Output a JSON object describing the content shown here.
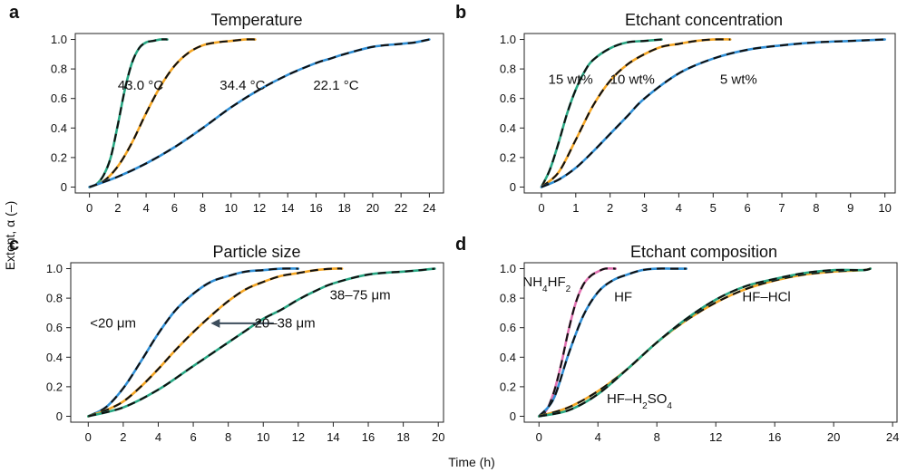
{
  "figure": {
    "ylabel": "Extent, α (–)",
    "xlabel": "Time (h)",
    "colors": {
      "green": "#27a884",
      "orange": "#f5a623",
      "blue": "#2f8fd6",
      "pink": "#e06fb0",
      "fit": "#111111",
      "arrow": "#3d4d5c"
    }
  },
  "chart_data": [
    {
      "id": "a",
      "type": "line",
      "panel_letter": "a",
      "title": "Temperature",
      "xlim": [
        -1,
        25
      ],
      "ylim": [
        0,
        1.0
      ],
      "xticks": [
        0,
        2,
        4,
        6,
        8,
        10,
        12,
        14,
        16,
        18,
        20,
        22,
        24
      ],
      "yticks": [
        0,
        0.2,
        0.4,
        0.6,
        0.8,
        1.0
      ],
      "ytick_labels": [
        "0",
        "0.2",
        "0.4",
        "0.6",
        "0.8",
        "1.0"
      ],
      "series": [
        {
          "label": "43.0 °C",
          "color": "green",
          "x": [
            0,
            0.5,
            1,
            1.5,
            2,
            2.5,
            3,
            3.5,
            4,
            4.5,
            5,
            5.5
          ],
          "y": [
            0,
            0.02,
            0.08,
            0.2,
            0.42,
            0.66,
            0.84,
            0.94,
            0.98,
            0.99,
            1.0,
            1.0
          ]
        },
        {
          "label": "34.4 °C",
          "color": "orange",
          "x": [
            0,
            1,
            2,
            3,
            4,
            5,
            6,
            7,
            8,
            9,
            10,
            11,
            11.7
          ],
          "y": [
            0,
            0.04,
            0.14,
            0.3,
            0.5,
            0.68,
            0.82,
            0.91,
            0.96,
            0.98,
            0.99,
            1.0,
            1.0
          ]
        },
        {
          "label": "22.1 °C",
          "color": "blue",
          "x": [
            0,
            2,
            4,
            6,
            8,
            10,
            12,
            14,
            16,
            17,
            18,
            20,
            22,
            23,
            24
          ],
          "y": [
            0,
            0.07,
            0.16,
            0.27,
            0.4,
            0.54,
            0.66,
            0.76,
            0.84,
            0.87,
            0.9,
            0.95,
            0.97,
            0.98,
            1.0
          ]
        }
      ],
      "labels": [
        {
          "text": "43.0 °C",
          "x": 2.0,
          "y": 0.66
        },
        {
          "text": "34.4 °C",
          "x": 9.2,
          "y": 0.66
        },
        {
          "text": "22.1 °C",
          "x": 15.8,
          "y": 0.66
        }
      ]
    },
    {
      "id": "b",
      "type": "line",
      "panel_letter": "b",
      "title": "Etchant concentration",
      "xlim": [
        -0.5,
        10.3
      ],
      "ylim": [
        0,
        1.0
      ],
      "xticks": [
        0,
        1,
        2,
        3,
        4,
        5,
        6,
        7,
        8,
        9,
        10
      ],
      "yticks": [
        0,
        0.2,
        0.4,
        0.6,
        0.8,
        1.0
      ],
      "ytick_labels": [
        "0",
        "0.2",
        "0.4",
        "0.6",
        "0.8",
        "1.0"
      ],
      "series": [
        {
          "label": "15 wt%",
          "color": "green",
          "x": [
            0,
            0.25,
            0.5,
            0.75,
            1,
            1.25,
            1.5,
            2,
            2.5,
            3,
            3.5
          ],
          "y": [
            0,
            0.12,
            0.3,
            0.5,
            0.66,
            0.78,
            0.86,
            0.94,
            0.98,
            0.99,
            1.0
          ]
        },
        {
          "label": "10 wt%",
          "color": "orange",
          "x": [
            0,
            0.5,
            1,
            1.5,
            2,
            2.5,
            3,
            3.5,
            4,
            4.5,
            5,
            5.5
          ],
          "y": [
            0,
            0.1,
            0.32,
            0.55,
            0.72,
            0.83,
            0.9,
            0.95,
            0.97,
            0.99,
            1.0,
            1.0
          ]
        },
        {
          "label": "5 wt%",
          "color": "blue",
          "x": [
            0,
            0.5,
            1,
            1.5,
            2,
            2.5,
            3,
            4,
            5,
            6,
            7,
            8,
            9,
            10
          ],
          "y": [
            0,
            0.05,
            0.13,
            0.24,
            0.36,
            0.48,
            0.6,
            0.77,
            0.87,
            0.93,
            0.96,
            0.98,
            0.99,
            1.0
          ]
        }
      ],
      "labels": [
        {
          "text": "15 wt%",
          "x": 0.2,
          "y": 0.7
        },
        {
          "text": "10 wt%",
          "x": 2.0,
          "y": 0.7
        },
        {
          "text": "5 wt%",
          "x": 5.2,
          "y": 0.7
        }
      ]
    },
    {
      "id": "c",
      "type": "line",
      "panel_letter": "c",
      "title": "Particle size",
      "xlim": [
        -1,
        20.3
      ],
      "ylim": [
        0,
        1.0
      ],
      "xticks": [
        0,
        2,
        4,
        6,
        8,
        10,
        12,
        14,
        16,
        18,
        20
      ],
      "yticks": [
        0,
        0.2,
        0.4,
        0.6,
        0.8,
        1.0
      ],
      "ytick_labels": [
        "0",
        "0.2",
        "0.4",
        "0.6",
        "0.8",
        "1.0"
      ],
      "series": [
        {
          "label": "<20 μm",
          "color": "blue",
          "x": [
            0,
            1,
            2,
            3,
            4,
            5,
            6,
            7,
            8,
            9,
            10,
            11,
            12
          ],
          "y": [
            0,
            0.06,
            0.19,
            0.37,
            0.56,
            0.72,
            0.83,
            0.91,
            0.95,
            0.98,
            0.99,
            1.0,
            1.0
          ]
        },
        {
          "label": "20–38 μm",
          "color": "orange",
          "x": [
            0,
            1,
            2,
            3,
            4,
            5,
            6,
            7,
            8,
            9,
            10,
            11,
            12,
            13,
            14,
            14.5
          ],
          "y": [
            0,
            0.04,
            0.1,
            0.2,
            0.32,
            0.45,
            0.57,
            0.68,
            0.78,
            0.86,
            0.91,
            0.95,
            0.97,
            0.99,
            1.0,
            1.0
          ]
        },
        {
          "label": "38–75 μm",
          "color": "green",
          "x": [
            0,
            2,
            4,
            6,
            8,
            9,
            10,
            11,
            12,
            13,
            14,
            16,
            18,
            19,
            19.8
          ],
          "y": [
            0,
            0.06,
            0.18,
            0.34,
            0.5,
            0.58,
            0.66,
            0.72,
            0.79,
            0.85,
            0.9,
            0.96,
            0.98,
            0.99,
            1.0
          ]
        }
      ],
      "labels": [
        {
          "text": "<20 μm",
          "x": 0.1,
          "y": 0.6
        },
        {
          "text": "20–38 μm",
          "x": 9.5,
          "y": 0.6
        },
        {
          "text": "38–75 μm",
          "x": 13.8,
          "y": 0.79
        }
      ],
      "arrow": {
        "x_from": 10.6,
        "x_to": 7.0,
        "y": 0.63
      }
    },
    {
      "id": "d",
      "type": "line",
      "panel_letter": "d",
      "title": "Etchant composition",
      "xlim": [
        -1,
        24.3
      ],
      "ylim": [
        0,
        1.0
      ],
      "xticks": [
        0,
        4,
        8,
        12,
        16,
        20,
        24
      ],
      "yticks": [
        0,
        0.2,
        0.4,
        0.6,
        0.8,
        1.0
      ],
      "ytick_labels": [
        "0",
        "0.2",
        "0.4",
        "0.6",
        "0.8",
        "1.0"
      ],
      "series": [
        {
          "label": "NH4HF2",
          "color": "pink",
          "x": [
            0,
            0.5,
            1,
            1.5,
            2,
            2.5,
            3,
            3.5,
            4,
            4.5,
            5.2
          ],
          "y": [
            0,
            0.04,
            0.16,
            0.35,
            0.58,
            0.77,
            0.89,
            0.95,
            0.98,
            1.0,
            1.0
          ]
        },
        {
          "label": "HF",
          "color": "blue",
          "x": [
            0,
            1,
            2,
            3,
            4,
            5,
            6,
            7,
            8,
            9,
            10
          ],
          "y": [
            0,
            0.12,
            0.42,
            0.68,
            0.84,
            0.92,
            0.96,
            0.99,
            1.0,
            1.0,
            1.0
          ]
        },
        {
          "label": "HF–HCl",
          "color": "orange",
          "x": [
            0,
            2,
            4,
            6,
            8,
            10,
            12,
            14,
            16,
            18,
            20,
            22,
            22.5
          ],
          "y": [
            0,
            0.06,
            0.17,
            0.32,
            0.5,
            0.65,
            0.77,
            0.86,
            0.92,
            0.96,
            0.98,
            0.99,
            1.0
          ]
        },
        {
          "label": "HF–H2SO4",
          "color": "green",
          "x": [
            0,
            2,
            4,
            6,
            8,
            10,
            12,
            14,
            16,
            18,
            20,
            22,
            22.5
          ],
          "y": [
            0,
            0.04,
            0.15,
            0.32,
            0.5,
            0.66,
            0.79,
            0.88,
            0.93,
            0.97,
            0.99,
            0.99,
            1.0
          ]
        }
      ],
      "labels": [
        {
          "text": "NH4HF2",
          "x": -1.1,
          "y": 0.88,
          "sub": "4",
          "sub_pos": 2
        },
        {
          "text": "HF",
          "x": 5.1,
          "y": 0.78
        },
        {
          "text": "HF–HCl",
          "x": 13.8,
          "y": 0.78
        },
        {
          "text": "HF–H2SO4",
          "x": 4.6,
          "y": 0.09
        }
      ]
    }
  ]
}
